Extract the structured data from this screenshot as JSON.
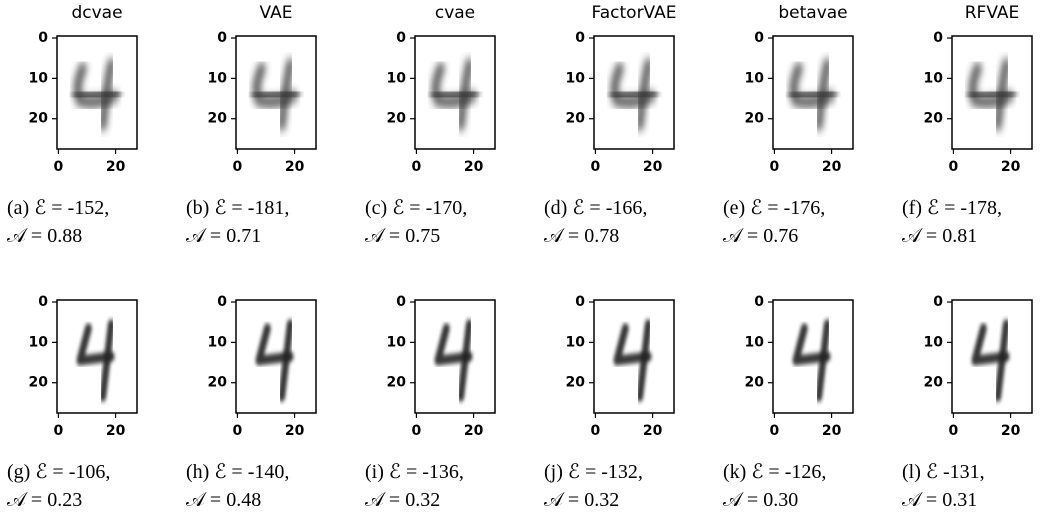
{
  "xticks": [
    0,
    20
  ],
  "yticks": [
    0,
    10,
    20
  ],
  "panels": [
    {
      "title": "dcvae",
      "line1": "(a) ℰ = -152,",
      "line2": "𝒜 = 0.88"
    },
    {
      "title": "VAE",
      "line1": "(b) ℰ = -181,",
      "line2": "𝒜 = 0.71"
    },
    {
      "title": "cvae",
      "line1": "(c) ℰ = -170,",
      "line2": "𝒜 = 0.75"
    },
    {
      "title": "FactorVAE",
      "line1": "(d) ℰ = -166,",
      "line2": "𝒜 = 0.78"
    },
    {
      "title": "betavae",
      "line1": "(e) ℰ = -176,",
      "line2": "𝒜 = 0.76"
    },
    {
      "title": "RFVAE",
      "line1": "(f) ℰ = -178,",
      "line2": "𝒜 = 0.81"
    },
    {
      "line1": "(g) ℰ = -106,",
      "line2": "𝒜 = 0.23"
    },
    {
      "line1": "(h) ℰ = -140,",
      "line2": "𝒜 = 0.48"
    },
    {
      "line1": "(i) ℰ = -136,",
      "line2": "𝒜 = 0.32"
    },
    {
      "line1": "(j) ℰ = -132,",
      "line2": "𝒜 = 0.32"
    },
    {
      "line1": "(k) ℰ = -126,",
      "line2": "𝒜 = 0.30"
    },
    {
      "line1": "(l) ℰ -131,",
      "line2": "𝒜 = 0.31"
    }
  ]
}
